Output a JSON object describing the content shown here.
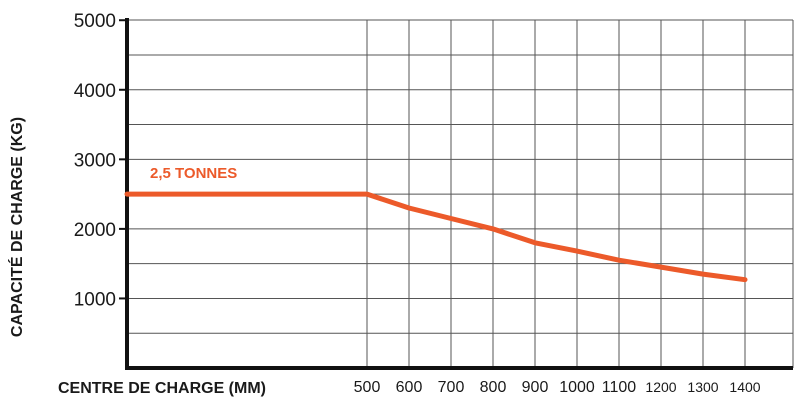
{
  "chart_data": {
    "type": "line",
    "xlabel": "CENTRE DE CHARGE (MM)",
    "ylabel": "CAPACITÉ DE CHARGE (KG)",
    "y_ticks": [
      "5000",
      "4000",
      "3000",
      "2000",
      "1000"
    ],
    "x_ticks": [
      "500",
      "600",
      "700",
      "800",
      "900",
      "1000",
      "1100",
      "1200",
      "1300",
      "1400"
    ],
    "ylim": [
      0,
      5000
    ],
    "grid": true,
    "annotation": "2,5 TONNES",
    "line_color": "#ec5a2a",
    "series": [
      {
        "x": [
          0,
          500,
          600,
          700,
          800,
          900,
          1000,
          1100,
          1200,
          1300,
          1400
        ],
        "values": [
          2500,
          2500,
          2300,
          2150,
          2000,
          1800,
          1680,
          1550,
          1450,
          1350,
          1270
        ]
      }
    ]
  }
}
